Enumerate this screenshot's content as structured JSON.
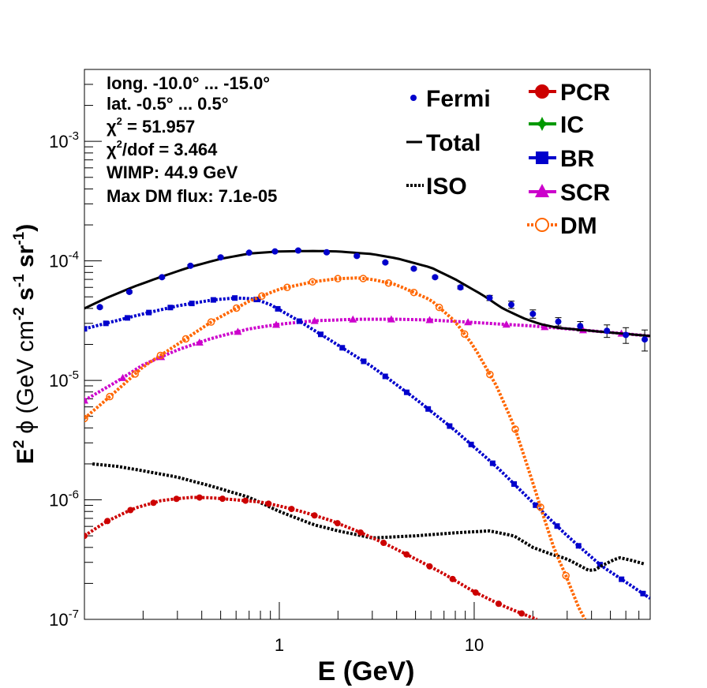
{
  "chart_data": {
    "type": "line",
    "xlabel": "E (GeV)",
    "ylabel": {
      "main": "E",
      "sup1": "2",
      "phi": "ϕ (GeV cm",
      "sup2": "-2",
      "mid": " s",
      "sup3": "-1",
      "mid2": " sr",
      "sup4": "-1",
      "end": ")"
    },
    "xscale": "log",
    "yscale": "log",
    "xlim": [
      0.1,
      80
    ],
    "ylim": [
      1e-07,
      0.004
    ],
    "x_ticks": [
      {
        "value": 1,
        "label": "1"
      },
      {
        "value": 10,
        "label": "10"
      }
    ],
    "y_ticks": [
      {
        "value": 1e-07,
        "base": "10",
        "exp": "-7"
      },
      {
        "value": 1e-06,
        "base": "10",
        "exp": "-6"
      },
      {
        "value": 1e-05,
        "base": "10",
        "exp": "-5"
      },
      {
        "value": 0.0001,
        "base": "10",
        "exp": "-4"
      },
      {
        "value": 0.001,
        "base": "10",
        "exp": "-3"
      }
    ],
    "info": {
      "longitude": "long. -10.0° ... -15.0°",
      "latitude": "lat. -0.5° ... 0.5°",
      "chi2_sym": "χ",
      "chi2_sup": "2",
      "chi2_val": " = 51.957",
      "chi2dof_sym": "χ",
      "chi2dof_sup": "2",
      "chi2dof_val": "/dof = 3.464",
      "wimp": "WIMP: 44.9 GeV",
      "max_dm": "Max DM flux: 7.1e-05"
    },
    "legend_left": [
      {
        "name": "Fermi",
        "style": "points"
      },
      {
        "name": "Total",
        "style": "line"
      },
      {
        "name": "ISO",
        "style": "dotted"
      }
    ],
    "legend_right": [
      {
        "name": "PCR",
        "color": "#cc0000",
        "marker": "circle"
      },
      {
        "name": "IC",
        "color": "#009900",
        "marker": "star"
      },
      {
        "name": "BR",
        "color": "#0000cc",
        "marker": "square"
      },
      {
        "name": "SCR",
        "color": "#cc00cc",
        "marker": "triangle"
      },
      {
        "name": "DM",
        "color": "#ff6600",
        "marker": "open-circle"
      }
    ],
    "series": [
      {
        "name": "Fermi",
        "color": "#0000cc",
        "x": [
          0.12,
          0.17,
          0.25,
          0.35,
          0.5,
          0.7,
          0.95,
          1.25,
          1.75,
          2.5,
          3.5,
          4.9,
          6.3,
          8.5,
          12,
          15.5,
          20,
          27,
          35,
          48,
          60,
          75
        ],
        "y": [
          4.1e-05,
          5.5e-05,
          7.3e-05,
          9.1e-05,
          0.000107,
          0.000117,
          0.00012,
          0.000122,
          0.000118,
          0.00011,
          9.7e-05,
          8.6e-05,
          7.3e-05,
          6e-05,
          4.9e-05,
          4.3e-05,
          3.6e-05,
          3.1e-05,
          2.85e-05,
          2.6e-05,
          2.4e-05,
          2.2e-05
        ],
        "err": [
          0.02,
          0.02,
          0.02,
          0.02,
          0.02,
          0.02,
          0.02,
          0.02,
          0.02,
          0.02,
          0.02,
          0.02,
          0.02,
          0.03,
          0.05,
          0.07,
          0.08,
          0.08,
          0.09,
          0.12,
          0.15,
          0.2
        ]
      },
      {
        "name": "Total",
        "color": "#000000",
        "x": [
          0.1,
          0.13,
          0.18,
          0.25,
          0.35,
          0.5,
          0.7,
          1.0,
          1.5,
          2.0,
          3.0,
          4.0,
          6.0,
          8.0,
          11,
          14,
          18,
          22,
          27,
          35,
          45,
          60,
          80
        ],
        "y": [
          4e-05,
          4.9e-05,
          6.1e-05,
          7.4e-05,
          8.9e-05,
          0.000104,
          0.000115,
          0.00012,
          0.000121,
          0.00012,
          0.000114,
          0.000105,
          8.8e-05,
          7e-05,
          5.2e-05,
          4e-05,
          3.3e-05,
          2.95e-05,
          2.75e-05,
          2.65e-05,
          2.55e-05,
          2.45e-05,
          2.35e-05
        ]
      },
      {
        "name": "BR",
        "color": "#0000cc",
        "x": [
          0.1,
          0.2,
          0.3,
          0.45,
          0.6,
          0.75,
          0.9,
          1.2,
          1.8,
          3.0,
          5.0,
          8.0,
          13,
          20,
          30,
          45,
          80
        ],
        "y": [
          2.7e-05,
          3.6e-05,
          4.2e-05,
          4.7e-05,
          4.9e-05,
          4.8e-05,
          4.3e-05,
          3.3e-05,
          2.2e-05,
          1.3e-05,
          7e-06,
          3.8e-06,
          1.9e-06,
          9.5e-07,
          5e-07,
          2.8e-07,
          1.5e-07
        ]
      },
      {
        "name": "SCR",
        "color": "#cc00cc",
        "x": [
          0.1,
          0.15,
          0.2,
          0.3,
          0.45,
          0.7,
          1.0,
          1.5,
          2.5,
          4.0,
          6.0,
          10,
          20,
          40,
          80
        ],
        "y": [
          6.8e-06,
          1e-05,
          1.35e-05,
          1.8e-05,
          2.25e-05,
          2.7e-05,
          2.95e-05,
          3.15e-05,
          3.25e-05,
          3.25e-05,
          3.2e-05,
          3.05e-05,
          2.85e-05,
          2.6e-05,
          2.35e-05
        ]
      },
      {
        "name": "DM",
        "color": "#ff6600",
        "x": [
          0.1,
          0.15,
          0.2,
          0.3,
          0.45,
          0.7,
          1.0,
          1.5,
          2.0,
          2.5,
          3.0,
          4.0,
          6.0,
          8.0,
          10,
          13,
          16,
          19,
          22,
          26,
          30,
          34,
          37
        ],
        "y": [
          4.8e-06,
          8.5e-06,
          1.3e-05,
          2e-05,
          3.1e-05,
          4.6e-05,
          5.8e-05,
          6.7e-05,
          7.1e-05,
          7.2e-05,
          7e-05,
          6.3e-05,
          4.7e-05,
          3.1e-05,
          1.9e-05,
          9e-06,
          4.2e-06,
          1.8e-06,
          8.5e-07,
          3.7e-07,
          2.2e-07,
          1.3e-07,
          1e-07
        ]
      },
      {
        "name": "ISO",
        "color": "#000000",
        "x": [
          0.11,
          0.15,
          0.2,
          0.3,
          0.45,
          0.7,
          1.0,
          1.5,
          2.0,
          3.0,
          5.0,
          8.0,
          12,
          16,
          20,
          25,
          30,
          35,
          40,
          45,
          55,
          65,
          75
        ],
        "y": [
          2e-06,
          1.9e-06,
          1.75e-06,
          1.55e-06,
          1.3e-06,
          1.05e-06,
          8e-07,
          6.2e-07,
          5.5e-07,
          4.8e-07,
          5e-07,
          5.3e-07,
          5.5e-07,
          5e-07,
          4e-07,
          3.5e-07,
          3.2e-07,
          2.8e-07,
          2.5e-07,
          2.8e-07,
          3.3e-07,
          3.1e-07,
          2.9e-07
        ]
      },
      {
        "name": "PCR",
        "color": "#cc0000",
        "x": [
          0.1,
          0.13,
          0.18,
          0.25,
          0.35,
          0.45,
          0.6,
          0.8,
          1.0,
          1.3,
          1.8,
          2.5,
          3.5,
          5.0,
          7.0,
          10,
          14,
          18,
          21
        ],
        "y": [
          5e-07,
          6.6e-07,
          8.5e-07,
          9.9e-07,
          1.05e-06,
          1.04e-06,
          1e-06,
          9.6e-07,
          8.9e-07,
          8e-07,
          6.8e-07,
          5.5e-07,
          4.3e-07,
          3.2e-07,
          2.4e-07,
          1.7e-07,
          1.3e-07,
          1.1e-07,
          1e-07
        ]
      }
    ]
  }
}
